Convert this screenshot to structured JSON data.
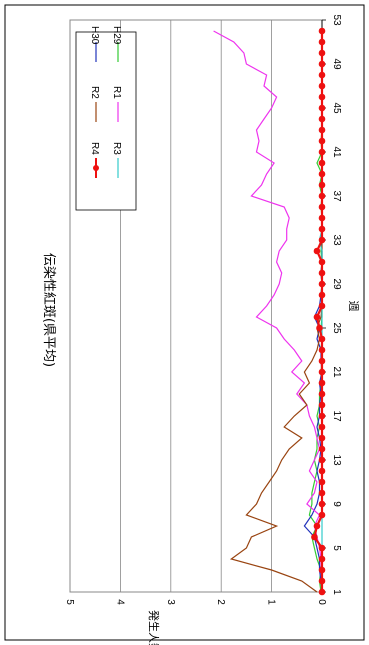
{
  "chart_data": {
    "type": "line",
    "title": "伝染性紅斑(県平均)",
    "xlabel": "週",
    "ylabel": "発生人数",
    "ylim": [
      0,
      5
    ],
    "xlim": [
      1,
      53
    ],
    "grid": true,
    "legend": "top-right",
    "x_ticks": [
      "1",
      "5",
      "9",
      "13",
      "17",
      "21",
      "25",
      "29",
      "33",
      "37",
      "41",
      "45",
      "49",
      "53"
    ],
    "y_ticks": [
      "0",
      "1",
      "2",
      "3",
      "4",
      "5"
    ],
    "x": [
      1,
      2,
      3,
      4,
      5,
      6,
      7,
      8,
      9,
      10,
      11,
      12,
      13,
      14,
      15,
      16,
      17,
      18,
      19,
      20,
      21,
      22,
      23,
      24,
      25,
      26,
      27,
      28,
      29,
      30,
      31,
      32,
      33,
      34,
      35,
      36,
      37,
      38,
      39,
      40,
      41,
      42,
      43,
      44,
      45,
      46,
      47,
      48,
      49,
      50,
      51,
      52
    ],
    "series": [
      {
        "name": "H29",
        "color": "#33cc33",
        "marker": false,
        "values": [
          0.02,
          0.05,
          0.02,
          0.1,
          0.15,
          0.2,
          0.1,
          0.25,
          0.2,
          0.2,
          0.15,
          0.1,
          0.15,
          0.1,
          0.1,
          0.05,
          0.1,
          0.05,
          0.05,
          0.02,
          0.02,
          0.0,
          0.02,
          0.0,
          0.02,
          0.0,
          0.0,
          0.02,
          0.0,
          0.02,
          0.0,
          0.02,
          0.0,
          0.0,
          0.0,
          0.02,
          0.0,
          0.05,
          0.0,
          0.1,
          0.0,
          0.02,
          0.0,
          0.0,
          0.0,
          0.0,
          0.0,
          0.0,
          0.0,
          0.0,
          0.0,
          0.0
        ]
      },
      {
        "name": "H30",
        "color": "#2233bb",
        "marker": false,
        "values": [
          0.0,
          0.02,
          0.05,
          0.05,
          0.1,
          0.15,
          0.35,
          0.2,
          0.1,
          0.05,
          0.05,
          0.1,
          0.05,
          0.02,
          0.05,
          0.1,
          0.05,
          0.05,
          0.02,
          0.05,
          0.0,
          0.02,
          0.02,
          0.1,
          0.05,
          0.15,
          0.05,
          0.02,
          0.0,
          0.02,
          0.0,
          0.0,
          0.02,
          0.0,
          0.0,
          0.0,
          0.0,
          0.0,
          0.0,
          0.0,
          0.0,
          0.0,
          0.0,
          0.0,
          0.0,
          0.0,
          0.0,
          0.0,
          0.0,
          0.0,
          0.0,
          0.0
        ]
      },
      {
        "name": "R1",
        "color": "#ee33ee",
        "marker": false,
        "values": [
          0.0,
          0.0,
          0.02,
          0.02,
          0.05,
          0.1,
          0.15,
          0.05,
          0.3,
          0.15,
          0.1,
          0.25,
          0.15,
          0.05,
          0.1,
          0.15,
          0.25,
          0.3,
          0.5,
          0.35,
          0.6,
          0.4,
          0.55,
          0.75,
          0.9,
          1.3,
          1.1,
          0.95,
          0.85,
          0.8,
          0.9,
          0.85,
          0.7,
          0.7,
          0.65,
          0.75,
          1.4,
          1.2,
          1.1,
          0.95,
          1.3,
          1.25,
          1.3,
          1.15,
          1.0,
          0.9,
          1.15,
          1.1,
          1.5,
          1.55,
          1.75,
          2.15
        ]
      },
      {
        "name": "R2",
        "color": "#994411",
        "marker": false,
        "values": [
          0.1,
          0.4,
          1.0,
          1.8,
          1.5,
          1.4,
          0.9,
          1.5,
          1.3,
          1.2,
          1.05,
          0.9,
          0.8,
          0.65,
          0.4,
          0.75,
          0.55,
          0.3,
          0.45,
          0.25,
          0.35,
          0.2,
          0.1,
          0.05,
          0.1,
          0.02,
          0.0,
          0.0,
          0.0,
          0.0,
          0.0,
          0.0,
          0.0,
          0.0,
          0.0,
          0.0,
          0.0,
          0.0,
          0.0,
          0.0,
          0.0,
          0.0,
          0.0,
          0.0,
          0.0,
          0.0,
          0.0,
          0.0,
          0.0,
          0.0,
          0.0,
          0.0
        ]
      },
      {
        "name": "R3",
        "color": "#33cccc",
        "marker": false,
        "values": [
          0.0,
          0.0,
          0.0,
          0.0,
          0.0,
          0.0,
          0.0,
          0.0,
          0.0,
          0.0,
          0.0,
          0.0,
          0.0,
          0.0,
          0.0,
          0.0,
          0.0,
          0.0,
          0.0,
          0.0,
          0.0,
          0.0,
          0.0,
          0.0,
          0.0,
          0.0,
          0.0,
          0.0,
          0.0,
          0.0,
          0.0,
          0.0,
          0.05,
          0.0,
          0.0,
          0.0,
          0.0,
          0.0,
          0.0,
          0.0,
          0.0,
          0.0,
          0.0,
          0.0,
          0.0,
          0.0,
          0.0,
          0.0,
          0.0,
          0.0,
          0.0,
          0.0
        ]
      },
      {
        "name": "R4",
        "color": "#ee1111",
        "marker": true,
        "values": [
          0.0,
          0.0,
          0.0,
          0.0,
          0.0,
          0.15,
          0.1,
          0.0,
          0.0,
          0.0,
          0.0,
          0.0,
          0.0,
          0.0,
          0.0,
          0.0,
          0.0,
          0.0,
          0.0,
          0.0,
          0.0,
          0.0,
          0.0,
          0.0,
          0.05,
          0.1,
          0.0,
          0.0,
          0.0,
          0.0,
          0.0,
          0.1,
          0.0,
          0.0,
          0.0,
          0.0,
          0.0,
          0.0,
          0.0,
          0.0,
          0.0,
          0.0,
          0.0,
          0.0,
          0.0,
          0.0,
          0.0,
          0.0,
          0.0,
          0.0,
          0.0,
          0.0
        ]
      }
    ]
  }
}
